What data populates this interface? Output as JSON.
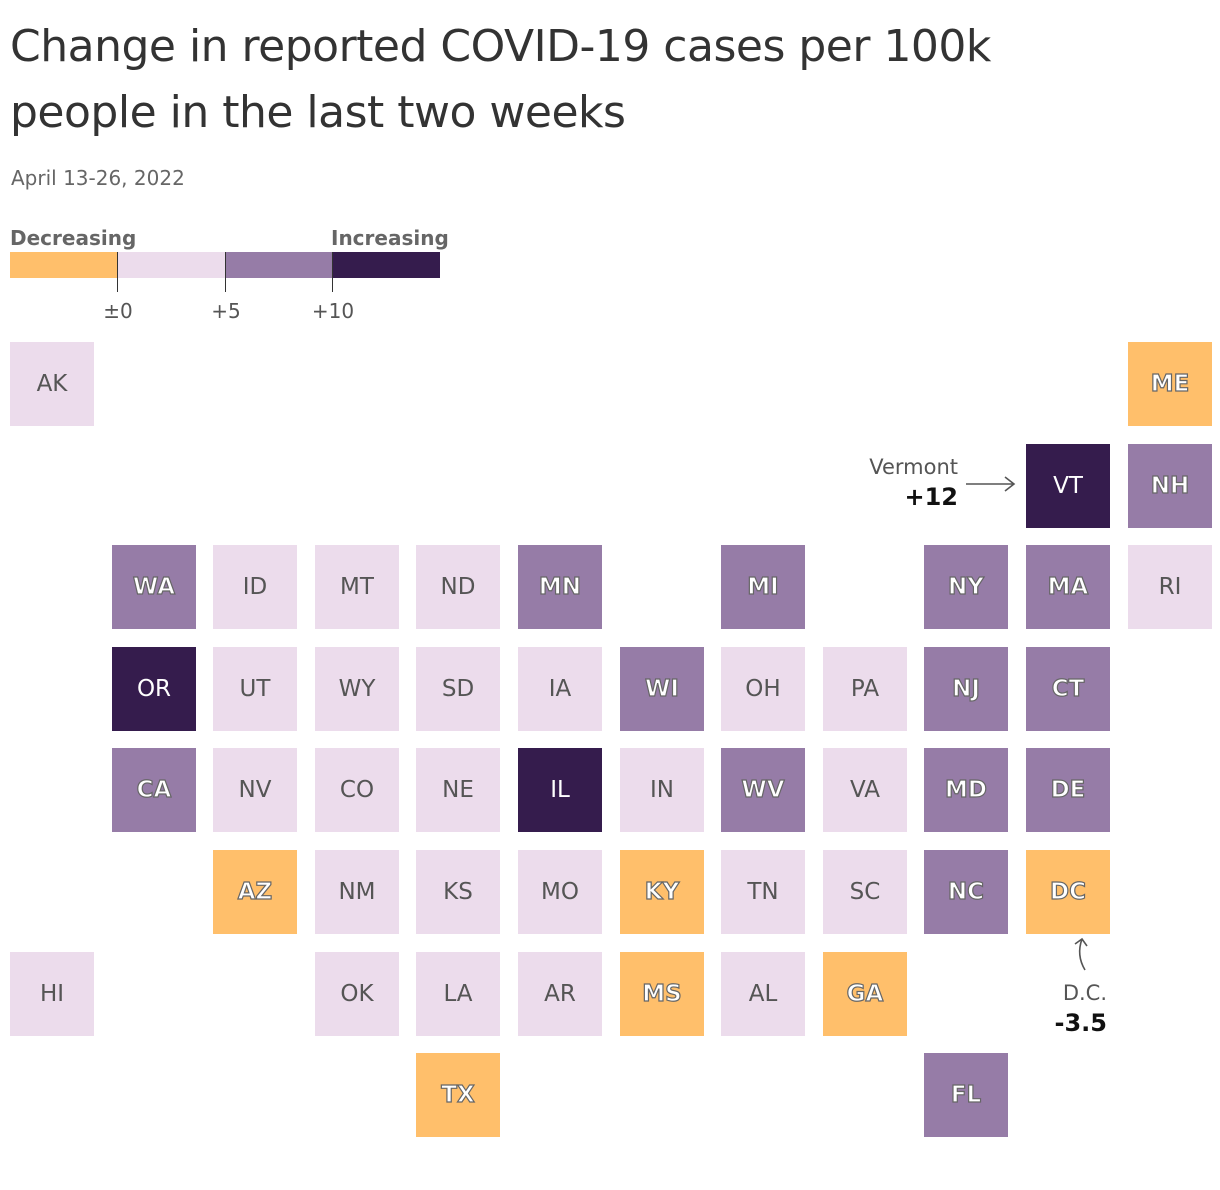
{
  "title": "Change in reported COVID-19 cases per 100k people in the last two weeks",
  "subtitle": "April 13-26, 2022",
  "legend": {
    "decreasing_label": "Decreasing",
    "increasing_label": "Increasing",
    "ticks": [
      "±0",
      "+5",
      "+10"
    ],
    "colors": [
      "#ffbf6b",
      "#ecdcec",
      "#967ca7",
      "#351c4d"
    ]
  },
  "annotations": {
    "vermont": {
      "name": "Vermont",
      "value": "+12"
    },
    "dc": {
      "name": "D.C.",
      "value": "-3.5"
    }
  },
  "chart_data": {
    "type": "tile-map",
    "title": "Change in reported COVID-19 cases per 100k people in the last two weeks",
    "subtitle": "April 13-26, 2022",
    "bins": [
      "Decreasing (<0)",
      "0 to +5",
      "+5 to +10",
      "+10 and up"
    ],
    "states": [
      {
        "abbr": "AK",
        "row": 0,
        "col": 0,
        "bin": 1
      },
      {
        "abbr": "ME",
        "row": 0,
        "col": 11,
        "bin": 0
      },
      {
        "abbr": "VT",
        "row": 1,
        "col": 10,
        "bin": 3
      },
      {
        "abbr": "NH",
        "row": 1,
        "col": 11,
        "bin": 2
      },
      {
        "abbr": "WA",
        "row": 2,
        "col": 1,
        "bin": 2
      },
      {
        "abbr": "ID",
        "row": 2,
        "col": 2,
        "bin": 1
      },
      {
        "abbr": "MT",
        "row": 2,
        "col": 3,
        "bin": 1
      },
      {
        "abbr": "ND",
        "row": 2,
        "col": 4,
        "bin": 1
      },
      {
        "abbr": "MN",
        "row": 2,
        "col": 5,
        "bin": 2
      },
      {
        "abbr": "MI",
        "row": 2,
        "col": 7,
        "bin": 2
      },
      {
        "abbr": "NY",
        "row": 2,
        "col": 9,
        "bin": 2
      },
      {
        "abbr": "MA",
        "row": 2,
        "col": 10,
        "bin": 2
      },
      {
        "abbr": "RI",
        "row": 2,
        "col": 11,
        "bin": 1
      },
      {
        "abbr": "OR",
        "row": 3,
        "col": 1,
        "bin": 3
      },
      {
        "abbr": "UT",
        "row": 3,
        "col": 2,
        "bin": 1
      },
      {
        "abbr": "WY",
        "row": 3,
        "col": 3,
        "bin": 1
      },
      {
        "abbr": "SD",
        "row": 3,
        "col": 4,
        "bin": 1
      },
      {
        "abbr": "IA",
        "row": 3,
        "col": 5,
        "bin": 1
      },
      {
        "abbr": "WI",
        "row": 3,
        "col": 6,
        "bin": 2
      },
      {
        "abbr": "OH",
        "row": 3,
        "col": 7,
        "bin": 1
      },
      {
        "abbr": "PA",
        "row": 3,
        "col": 8,
        "bin": 1
      },
      {
        "abbr": "NJ",
        "row": 3,
        "col": 9,
        "bin": 2
      },
      {
        "abbr": "CT",
        "row": 3,
        "col": 10,
        "bin": 2
      },
      {
        "abbr": "CA",
        "row": 4,
        "col": 1,
        "bin": 2
      },
      {
        "abbr": "NV",
        "row": 4,
        "col": 2,
        "bin": 1
      },
      {
        "abbr": "CO",
        "row": 4,
        "col": 3,
        "bin": 1
      },
      {
        "abbr": "NE",
        "row": 4,
        "col": 4,
        "bin": 1
      },
      {
        "abbr": "IL",
        "row": 4,
        "col": 5,
        "bin": 3
      },
      {
        "abbr": "IN",
        "row": 4,
        "col": 6,
        "bin": 1
      },
      {
        "abbr": "WV",
        "row": 4,
        "col": 7,
        "bin": 2
      },
      {
        "abbr": "VA",
        "row": 4,
        "col": 8,
        "bin": 1
      },
      {
        "abbr": "MD",
        "row": 4,
        "col": 9,
        "bin": 2
      },
      {
        "abbr": "DE",
        "row": 4,
        "col": 10,
        "bin": 2
      },
      {
        "abbr": "AZ",
        "row": 5,
        "col": 2,
        "bin": 0
      },
      {
        "abbr": "NM",
        "row": 5,
        "col": 3,
        "bin": 1
      },
      {
        "abbr": "KS",
        "row": 5,
        "col": 4,
        "bin": 1
      },
      {
        "abbr": "MO",
        "row": 5,
        "col": 5,
        "bin": 1
      },
      {
        "abbr": "KY",
        "row": 5,
        "col": 6,
        "bin": 0
      },
      {
        "abbr": "TN",
        "row": 5,
        "col": 7,
        "bin": 1
      },
      {
        "abbr": "SC",
        "row": 5,
        "col": 8,
        "bin": 1
      },
      {
        "abbr": "NC",
        "row": 5,
        "col": 9,
        "bin": 2
      },
      {
        "abbr": "DC",
        "row": 5,
        "col": 10,
        "bin": 0
      },
      {
        "abbr": "HI",
        "row": 6,
        "col": 0,
        "bin": 1
      },
      {
        "abbr": "OK",
        "row": 6,
        "col": 3,
        "bin": 1
      },
      {
        "abbr": "LA",
        "row": 6,
        "col": 4,
        "bin": 1
      },
      {
        "abbr": "AR",
        "row": 6,
        "col": 5,
        "bin": 1
      },
      {
        "abbr": "MS",
        "row": 6,
        "col": 6,
        "bin": 0
      },
      {
        "abbr": "AL",
        "row": 6,
        "col": 7,
        "bin": 1
      },
      {
        "abbr": "GA",
        "row": 6,
        "col": 8,
        "bin": 0
      },
      {
        "abbr": "TX",
        "row": 7,
        "col": 4,
        "bin": 0
      },
      {
        "abbr": "FL",
        "row": 7,
        "col": 9,
        "bin": 2
      }
    ]
  }
}
